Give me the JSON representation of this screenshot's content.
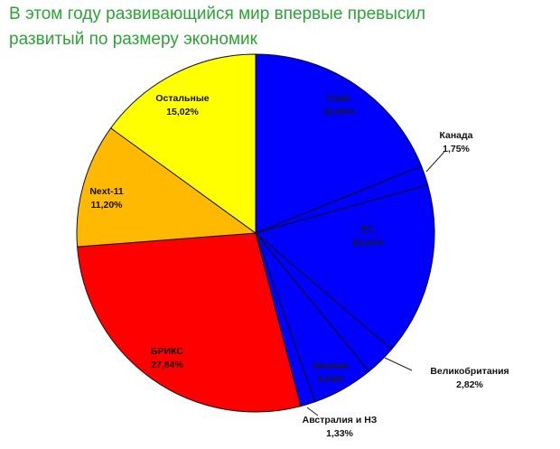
{
  "title": {
    "line1": "В этом году развивающийся мир впервые превысил",
    "line2": "развитый по размеру экономик"
  },
  "chart_data": {
    "type": "pie",
    "title": "В этом году развивающийся мир впервые превысил развитый по размеру экономик",
    "slices": [
      {
        "label": "США",
        "value": 18.9,
        "value_text": "18,90%",
        "color": "#0000ff"
      },
      {
        "label": "Канада",
        "value": 1.75,
        "value_text": "1,75%",
        "color": "#0000ff"
      },
      {
        "label": "ЕС",
        "value": 15.61,
        "value_text": "15,61%",
        "color": "#0000ff"
      },
      {
        "label": "Великобритания",
        "value": 2.82,
        "value_text": "2,82%",
        "color": "#0000ff"
      },
      {
        "label": "Япония",
        "value": 5.54,
        "value_text": "5,54%",
        "color": "#0000ff"
      },
      {
        "label": "Австралия и НЗ",
        "value": 1.33,
        "value_text": "1,33%",
        "color": "#0000ff"
      },
      {
        "label": "БРИКС",
        "value": 27.84,
        "value_text": "27,84%",
        "color": "#ff0000"
      },
      {
        "label": "Next-11",
        "value": 11.2,
        "value_text": "11,20%",
        "color": "#ffb900"
      },
      {
        "label": "Остальные",
        "value": 15.02,
        "value_text": "15,02%",
        "color": "#ffff00"
      }
    ]
  }
}
